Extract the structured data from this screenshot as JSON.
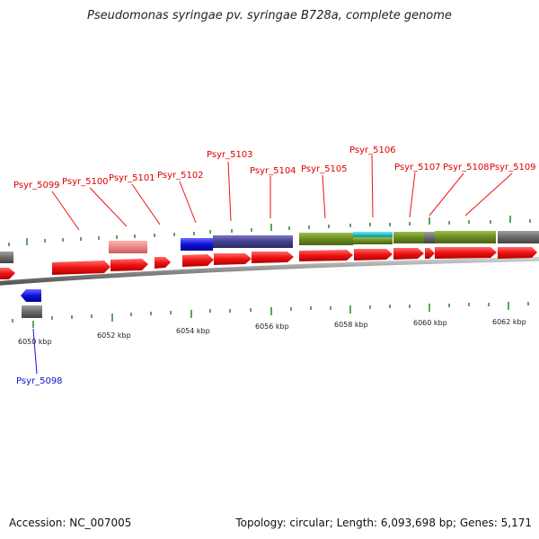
{
  "title": "Pseudomonas syringae pv. syringae B728a, complete genome",
  "footer": {
    "accession": "Accession: NC_007005",
    "summary": "Topology: circular; Length: 6,093,698 bp; Genes: 5,171"
  },
  "axis_labels": [
    "6050 kbp",
    "6052 kbp",
    "6054 kbp",
    "6056 kbp",
    "6058 kbp",
    "6060 kbp",
    "6062 kbp"
  ],
  "gene_labels": {
    "psyr_5098": "Psyr_5098",
    "psyr_5099": "Psyr_5099",
    "psyr_5100": "Psyr_5100",
    "psyr_5101": "Psyr_5101",
    "psyr_5102": "Psyr_5102",
    "psyr_5103": "Psyr_5103",
    "psyr_5104": "Psyr_5104",
    "psyr_5105": "Psyr_5105",
    "psyr_5106": "Psyr_5106",
    "psyr_5107": "Psyr_5107",
    "psyr_5108": "Psyr_5108",
    "psyr_5109": "Psyr_5109"
  },
  "colors": {
    "forward_gene": "#ee1111",
    "reverse_gene": "#1111dd",
    "backbone": "#888888",
    "ticks": "#228822",
    "cog_navy": "#443f8c",
    "cog_olive": "#6b8a22",
    "cog_cyan": "#22c4d4",
    "cog_gray": "#666666",
    "cog_pink": "#ee8888"
  }
}
